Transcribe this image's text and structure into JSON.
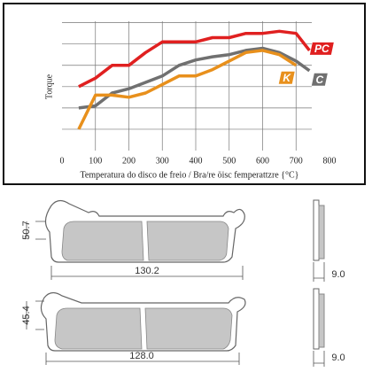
{
  "chart_data": {
    "type": "line",
    "x_label": "Temperatura do disco de freio / Bra/re öisc femperattzre {°C}",
    "y_label": "Torque",
    "x": [
      50,
      100,
      150,
      200,
      250,
      300,
      350,
      400,
      450,
      500,
      550,
      600,
      650,
      700,
      740
    ],
    "series": [
      {
        "name": "PC",
        "color": "#e02020",
        "values": [
          3.0,
          3.4,
          4.0,
          4.0,
          4.6,
          5.1,
          5.1,
          5.1,
          5.3,
          5.3,
          5.5,
          5.5,
          5.6,
          5.5,
          4.7
        ]
      },
      {
        "name": "C",
        "color": "#707070",
        "values": [
          2.0,
          2.1,
          2.7,
          2.9,
          3.2,
          3.5,
          4.0,
          4.25,
          4.4,
          4.5,
          4.7,
          4.8,
          4.6,
          4.2,
          3.75
        ]
      },
      {
        "name": "K",
        "color": "#e8901c",
        "values": [
          1.0,
          2.6,
          2.6,
          2.5,
          2.7,
          3.1,
          3.5,
          3.5,
          3.8,
          4.2,
          4.6,
          4.7,
          4.5,
          4.0,
          null
        ]
      }
    ],
    "xlim": [
      0,
      800
    ],
    "xticks": [
      0,
      100,
      200,
      300,
      400,
      500,
      600,
      700,
      800
    ],
    "ylim": [
      0,
      6.4
    ],
    "yticks": [
      1,
      2,
      3,
      4,
      5,
      6
    ],
    "grid": true
  },
  "drawings": [
    {
      "height": "50.7",
      "width": "130.2",
      "thickness": "9.0"
    },
    {
      "height": "45.4",
      "width": "128.0",
      "thickness": "9.0"
    }
  ]
}
